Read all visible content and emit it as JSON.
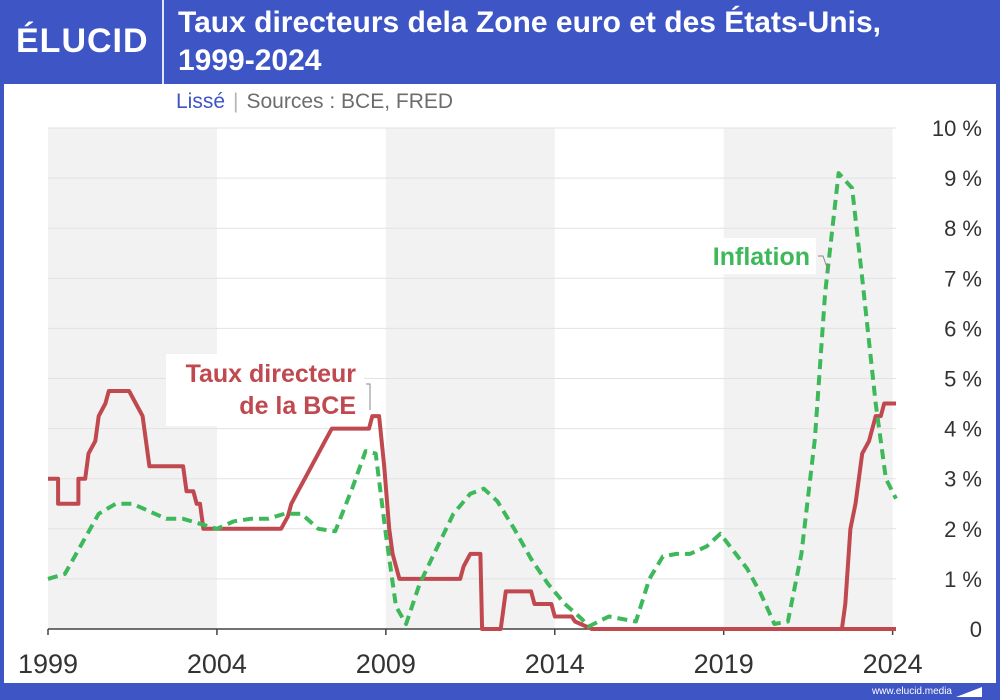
{
  "header": {
    "logo": "ÉLUCID",
    "title_line1": "Taux directeurs dela Zone euro et des États-Unis,",
    "title_line2": "1999-2024"
  },
  "subtitle": {
    "smoothing": "Lissé",
    "separator": "|",
    "sources": "Sources : BCE, FRED"
  },
  "footer": {
    "url": "www.elucid.media"
  },
  "colors": {
    "background": "#3e55c6",
    "ecb_rate": "#c0484f",
    "inflation": "#3db85b",
    "band": "#f2f2f2"
  },
  "chart_data": {
    "type": "line",
    "title": "Taux directeurs dela Zone euro et des États-Unis, 1999-2024",
    "xlim": [
      1999,
      2024.1
    ],
    "ylim": [
      0,
      10
    ],
    "x_ticks": [
      {
        "value": 1999,
        "label": "1999"
      },
      {
        "value": 2004,
        "label": "2004"
      },
      {
        "value": 2009,
        "label": "2009"
      },
      {
        "value": 2014,
        "label": "2014"
      },
      {
        "value": 2019,
        "label": "2019"
      },
      {
        "value": 2024,
        "label": "2024"
      }
    ],
    "y_ticks": [
      {
        "value": 0,
        "label": "0"
      },
      {
        "value": 1,
        "label": "1 %"
      },
      {
        "value": 2,
        "label": "2 %"
      },
      {
        "value": 3,
        "label": "3 %"
      },
      {
        "value": 4,
        "label": "4 %"
      },
      {
        "value": 5,
        "label": "5 %"
      },
      {
        "value": 6,
        "label": "6 %"
      },
      {
        "value": 7,
        "label": "7 %"
      },
      {
        "value": 8,
        "label": "8 %"
      },
      {
        "value": 9,
        "label": "9 %"
      },
      {
        "value": 10,
        "label": "10 %"
      }
    ],
    "grid": true,
    "y_axis_position": "right",
    "series": [
      {
        "key": "ecb",
        "name": "Taux directeur de la BCE",
        "label_lines": [
          "Taux directeur",
          "de la BCE"
        ],
        "style": "solid",
        "color": "#c0484f",
        "x": [
          1999.0,
          1999.3,
          1999.3,
          1999.9,
          1999.9,
          2000.1,
          2000.2,
          2000.4,
          2000.5,
          2000.7,
          2000.8,
          2001.4,
          2001.6,
          2001.8,
          2001.9,
          2002.0,
          2003.0,
          2003.1,
          2003.3,
          2003.4,
          2003.5,
          2003.6,
          2005.9,
          2006.1,
          2006.2,
          2006.4,
          2006.6,
          2006.8,
          2007.0,
          2007.2,
          2007.4,
          2008.5,
          2008.6,
          2008.8,
          2008.95,
          2009.1,
          2009.2,
          2009.4,
          2009.7,
          2011.2,
          2011.3,
          2011.5,
          2011.8,
          2011.85,
          2012.4,
          2012.55,
          2013.3,
          2013.4,
          2013.9,
          2014.0,
          2014.5,
          2014.6,
          2015.1,
          2024.1
        ],
        "y": [
          3.0,
          3.0,
          2.5,
          2.5,
          3.0,
          3.0,
          3.5,
          3.75,
          4.25,
          4.5,
          4.75,
          4.75,
          4.5,
          4.25,
          3.75,
          3.25,
          3.25,
          2.75,
          2.75,
          2.5,
          2.5,
          2.0,
          2.0,
          2.25,
          2.5,
          2.75,
          3.0,
          3.25,
          3.5,
          3.75,
          4.0,
          4.0,
          4.25,
          4.25,
          3.25,
          2.0,
          1.5,
          1.0,
          1.0,
          1.0,
          1.25,
          1.5,
          1.5,
          0.0,
          0.0,
          0.75,
          0.75,
          0.5,
          0.5,
          0.25,
          0.25,
          0.15,
          0.0,
          0.0
        ]
      },
      {
        "key": "ecb_recent",
        "name": "Taux directeur de la BCE",
        "style": "solid",
        "color": "#c0484f",
        "x": [
          2022.0,
          2022.5,
          2022.6,
          2022.75,
          2022.9,
          2023.1,
          2023.3,
          2023.5,
          2023.65,
          2023.75,
          2024.1
        ],
        "y": [
          0.0,
          0.0,
          0.5,
          2.0,
          2.5,
          3.5,
          3.75,
          4.25,
          4.25,
          4.5,
          4.5
        ]
      },
      {
        "key": "inflation",
        "name": "Inflation",
        "label_lines": [
          "Inflation"
        ],
        "style": "dashed",
        "color": "#3db85b",
        "x": [
          1999.0,
          1999.5,
          2000.0,
          2000.5,
          2001.0,
          2001.5,
          2002.0,
          2002.5,
          2003.0,
          2003.5,
          2004.0,
          2004.5,
          2005.0,
          2005.5,
          2006.0,
          2006.5,
          2007.0,
          2007.5,
          2008.0,
          2008.4,
          2008.7,
          2009.0,
          2009.3,
          2009.6,
          2010.0,
          2010.5,
          2011.0,
          2011.5,
          2011.9,
          2012.3,
          2012.8,
          2013.3,
          2013.8,
          2014.3,
          2014.8,
          2015.0,
          2015.3,
          2015.6,
          2016.0,
          2016.4,
          2016.8,
          2017.2,
          2017.6,
          2018.0,
          2018.5,
          2018.9,
          2019.3,
          2019.7,
          2020.1,
          2020.5,
          2020.9,
          2021.3,
          2021.7,
          2022.0,
          2022.4,
          2022.8,
          2023.1,
          2023.5,
          2023.8,
          2024.1
        ],
        "y": [
          1.0,
          1.1,
          1.7,
          2.3,
          2.5,
          2.5,
          2.35,
          2.2,
          2.2,
          2.1,
          2.0,
          2.15,
          2.2,
          2.2,
          2.3,
          2.3,
          2.0,
          1.95,
          2.8,
          3.55,
          3.5,
          1.9,
          0.45,
          0.1,
          0.9,
          1.6,
          2.3,
          2.7,
          2.8,
          2.55,
          2.0,
          1.4,
          0.9,
          0.5,
          0.2,
          0.05,
          0.15,
          0.25,
          0.2,
          0.15,
          1.0,
          1.45,
          1.5,
          1.5,
          1.65,
          1.9,
          1.55,
          1.2,
          0.7,
          0.1,
          0.15,
          1.5,
          3.8,
          6.7,
          9.1,
          8.8,
          7.0,
          4.5,
          3.0,
          2.6
        ]
      }
    ]
  }
}
